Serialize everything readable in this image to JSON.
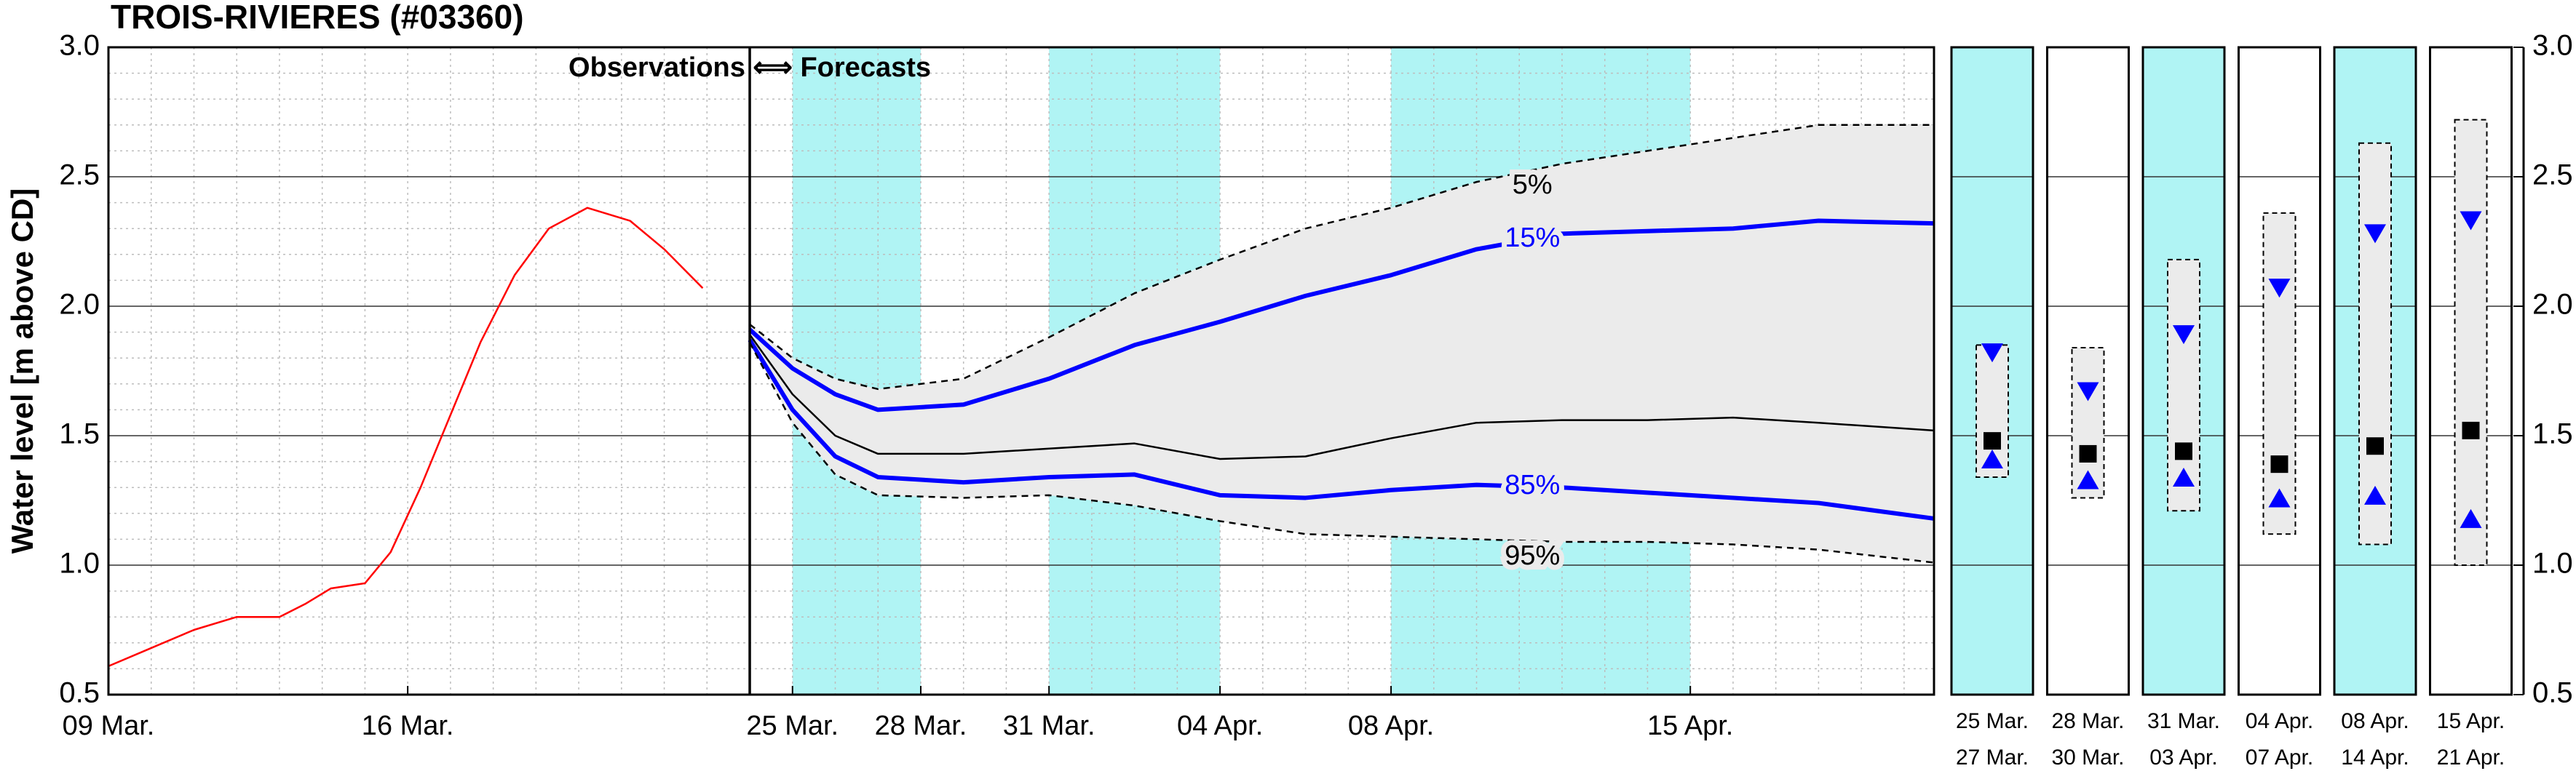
{
  "chart_data": [
    {
      "type": "line",
      "title": "TROIS-RIVIERES (#03360)",
      "ylabel": "Water level [m above CD]",
      "annotation": "Observations ⟺ Forecasts",
      "divider": 15,
      "xlim": [
        0,
        42.7
      ],
      "xticks": [
        {
          "value": 0,
          "label": "09 Mar."
        },
        {
          "value": 7,
          "label": "16 Mar."
        },
        {
          "value": 16,
          "label": "25 Mar."
        },
        {
          "value": 19,
          "label": "28 Mar."
        },
        {
          "value": 22,
          "label": "31 Mar."
        },
        {
          "value": 26,
          "label": "04 Apr."
        },
        {
          "value": 30,
          "label": "08 Apr."
        },
        {
          "value": 37,
          "label": "15 Apr."
        }
      ],
      "ylim": [
        0.5,
        3.0
      ],
      "yticks": [
        0.5,
        {
          "value": 1,
          "label": "1.0"
        },
        1.5,
        {
          "value": 2,
          "label": "2.0"
        },
        2.5,
        {
          "value": 3,
          "label": "3.0"
        }
      ],
      "grid": true,
      "minor_grid": true,
      "highlights": [
        [
          16,
          19
        ],
        [
          22,
          26
        ],
        [
          30,
          37
        ]
      ],
      "highlight_color": "#b0f4f4",
      "band_color": "#ebebeb",
      "series": [
        {
          "color": "#ff0000",
          "width": 2.5,
          "x": [
            0,
            1,
            2,
            3,
            4,
            4.6,
            5.2,
            6,
            6.6,
            7.3,
            8,
            8.7,
            9.5,
            10.3,
            11.2,
            12.2,
            13,
            13.9
          ],
          "values": [
            0.61,
            0.68,
            0.75,
            0.8,
            0.8,
            0.85,
            0.91,
            0.93,
            1.05,
            1.3,
            1.58,
            1.86,
            2.12,
            2.3,
            2.38,
            2.33,
            2.22,
            2.07
          ]
        },
        {
          "name": "5%",
          "color": "#000000",
          "width": 2.5,
          "dash": true,
          "x": [
            15,
            16,
            17,
            18,
            20,
            22,
            24,
            26,
            28,
            30,
            32,
            34,
            36,
            38,
            40,
            42.7
          ],
          "values": [
            1.93,
            1.8,
            1.72,
            1.68,
            1.72,
            1.88,
            2.05,
            2.18,
            2.3,
            2.38,
            2.48,
            2.55,
            2.6,
            2.65,
            2.7,
            2.7
          ]
        },
        {
          "name": "15%",
          "color": "#0000ff",
          "width": 6,
          "x": [
            15,
            16,
            17,
            18,
            20,
            22,
            24,
            26,
            28,
            30,
            32,
            34,
            36,
            38,
            40,
            42.7
          ],
          "values": [
            1.91,
            1.76,
            1.66,
            1.6,
            1.62,
            1.72,
            1.85,
            1.94,
            2.04,
            2.12,
            2.22,
            2.28,
            2.29,
            2.3,
            2.33,
            2.32
          ]
        },
        {
          "color": "#000000",
          "width": 2.5,
          "x": [
            15,
            16,
            17,
            18,
            20,
            22,
            24,
            26,
            28,
            30,
            32,
            34,
            36,
            38,
            40,
            42.7
          ],
          "values": [
            1.89,
            1.66,
            1.5,
            1.43,
            1.43,
            1.45,
            1.47,
            1.41,
            1.42,
            1.49,
            1.55,
            1.56,
            1.56,
            1.57,
            1.55,
            1.52
          ]
        },
        {
          "name": "85%",
          "color": "#0000ff",
          "width": 6,
          "x": [
            15,
            16,
            17,
            18,
            20,
            22,
            24,
            26,
            28,
            30,
            32,
            34,
            36,
            38,
            40,
            42.7
          ],
          "values": [
            1.87,
            1.6,
            1.42,
            1.34,
            1.32,
            1.34,
            1.35,
            1.27,
            1.26,
            1.29,
            1.31,
            1.3,
            1.28,
            1.26,
            1.24,
            1.18
          ]
        },
        {
          "name": "95%",
          "color": "#000000",
          "width": 2.5,
          "dash": true,
          "x": [
            15,
            16,
            17,
            18,
            20,
            22,
            24,
            26,
            28,
            30,
            32,
            34,
            36,
            38,
            40,
            42.7
          ],
          "values": [
            1.86,
            1.55,
            1.35,
            1.27,
            1.26,
            1.27,
            1.23,
            1.17,
            1.12,
            1.11,
            1.1,
            1.09,
            1.09,
            1.08,
            1.06,
            1.01
          ]
        }
      ]
    },
    {
      "type": "range",
      "categories": [
        [
          "25 Mar.",
          "27 Mar."
        ],
        [
          "28 Mar.",
          "30 Mar."
        ],
        [
          "31 Mar.",
          "03 Apr."
        ],
        [
          "04 Apr.",
          "07 Apr."
        ],
        [
          "08 Apr.",
          "14 Apr."
        ],
        [
          "15 Apr.",
          "21 Apr."
        ]
      ],
      "ylim": [
        0.5,
        3.0
      ],
      "yticks": [
        0.5,
        {
          "value": 1,
          "label": "1.0"
        },
        1.5,
        {
          "value": 2,
          "label": "2.0"
        },
        2.5,
        {
          "value": 3,
          "label": "3.0"
        }
      ],
      "shaded": [
        true,
        false,
        true,
        false,
        true,
        false
      ],
      "shade_color": "#b0f4f4",
      "band_color": "#ebebeb",
      "upper": [
        1.85,
        1.84,
        2.18,
        2.36,
        2.63,
        2.72
      ],
      "lower": [
        1.34,
        1.26,
        1.21,
        1.12,
        1.08,
        1.0
      ],
      "series": [
        {
          "marker": "triangle-down",
          "color": "#0000ff",
          "values": [
            1.82,
            1.67,
            1.89,
            2.07,
            2.28,
            2.33
          ]
        },
        {
          "marker": "square",
          "color": "#000000",
          "values": [
            1.48,
            1.43,
            1.44,
            1.39,
            1.46,
            1.52
          ]
        },
        {
          "marker": "triangle-up",
          "color": "#0000ff",
          "values": [
            1.41,
            1.33,
            1.34,
            1.26,
            1.27,
            1.18
          ]
        }
      ]
    }
  ]
}
